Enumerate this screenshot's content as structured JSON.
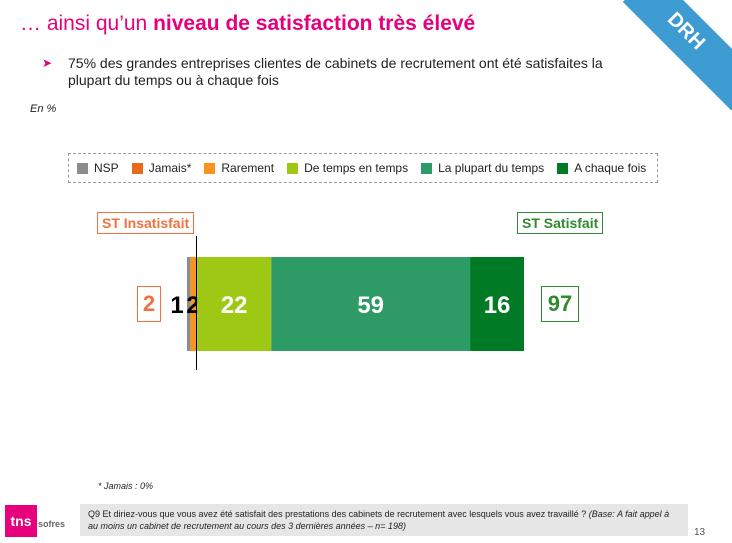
{
  "page": {
    "title_prefix": "… ainsi qu’un ",
    "title_bold": "niveau de satisfaction très élevé",
    "corner_tag": "DRH",
    "bullet_text": "75% des grandes entreprises clientes de cabinets de recrutement ont été satisfaites la plupart du temps ou à chaque fois",
    "unit": "En %",
    "footnote": "* Jamais : 0%",
    "question_text": "Q9 Et diriez-vous que vous avez été satisfait des prestations des cabinets de recrutement avec lesquels vous avez travaillé ? ",
    "question_base": "(Base: A fait appel à au moins un cabinet de recrutement au cours des 3 dernières années – n= 198)",
    "page_number": "13",
    "logo_main": "tns",
    "logo_sub": "sofres"
  },
  "chart_data": {
    "type": "bar",
    "orientation": "horizontal-stacked",
    "legend": [
      {
        "label": "NSP",
        "color": "#8c8c8c"
      },
      {
        "label": "Jamais*",
        "color": "#e8681c"
      },
      {
        "label": "Rarement",
        "color": "#f7941d"
      },
      {
        "label": "De temps en temps",
        "color": "#9ec814"
      },
      {
        "label": "La plupart du temps",
        "color": "#2e9a66"
      },
      {
        "label": "A chaque fois",
        "color": "#007a24"
      }
    ],
    "segments": [
      {
        "name": "NSP",
        "value": 1,
        "color": "#8c8c8c",
        "label": "1",
        "label_color": "#000000"
      },
      {
        "name": "Jamais*",
        "value": 0,
        "color": "#e8681c",
        "label": "",
        "label_color": "#000000"
      },
      {
        "name": "Rarement",
        "value": 2,
        "color": "#f7941d",
        "label": "2",
        "label_color": "#000000"
      },
      {
        "name": "De temps en temps",
        "value": 22,
        "color": "#9ec814",
        "label": "22",
        "label_color": "#ffffff"
      },
      {
        "name": "La plupart du temps",
        "value": 59,
        "color": "#2e9a66",
        "label": "59",
        "label_color": "#ffffff"
      },
      {
        "name": "A chaque fois",
        "value": 16,
        "color": "#007a24",
        "label": "16",
        "label_color": "#ffffff"
      }
    ],
    "st_insatisfait": {
      "label": "ST Insatisfait",
      "value": "2",
      "color": "#f26f3f"
    },
    "st_satisfait": {
      "label": "ST Satisfait",
      "value": "97",
      "color": "#2e8b2e"
    }
  }
}
